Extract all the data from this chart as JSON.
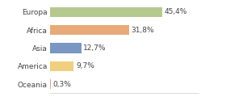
{
  "categories": [
    "Europa",
    "Africa",
    "Asia",
    "America",
    "Oceania"
  ],
  "values": [
    45.4,
    31.8,
    12.7,
    9.7,
    0.3
  ],
  "labels": [
    "45,4%",
    "31,8%",
    "12,7%",
    "9,7%",
    "0,3%"
  ],
  "bar_colors": [
    "#b5c98e",
    "#e8aa7a",
    "#7a96c2",
    "#f0d080",
    "#e8a0a0"
  ],
  "background_color": "#ffffff",
  "label_fontsize": 6.5,
  "tick_fontsize": 6.5,
  "xlim": [
    0,
    60
  ],
  "figsize": [
    2.8,
    1.2
  ],
  "dpi": 100
}
